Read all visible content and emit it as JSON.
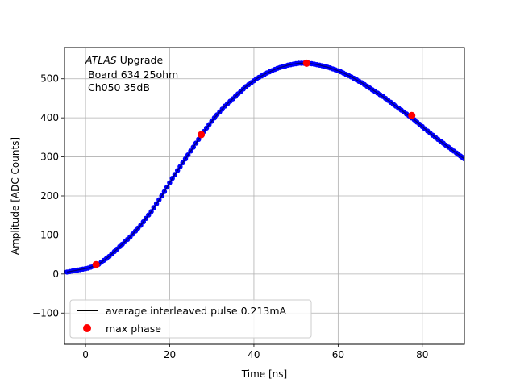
{
  "chart_data": {
    "type": "scatter",
    "xlabel": "Time [ns]",
    "ylabel": "Amplitude [ADC Counts]",
    "xlim": [
      -5,
      90
    ],
    "ylim": [
      -180,
      580
    ],
    "xticks": [
      0,
      20,
      40,
      60,
      80
    ],
    "yticks": [
      -100,
      0,
      100,
      200,
      300,
      400,
      500
    ],
    "grid": true,
    "legend_placement": "lower-left",
    "annotation": {
      "line1_italic": "ATLAS",
      "line1_rest": " Upgrade",
      "line2": "Board 634 25ohm",
      "line3": "Ch050 35dB"
    },
    "series": [
      {
        "name": "average interleaved pulse 0.213mA",
        "color": "#000000",
        "marker_color": "#0000ff",
        "points": [
          [
            -4.4,
            5
          ],
          [
            -1.9,
            10
          ],
          [
            0.6,
            15
          ],
          [
            3.1,
            25
          ],
          [
            5.6,
            45
          ],
          [
            8.1,
            70
          ],
          [
            10.6,
            95
          ],
          [
            13.1,
            125
          ],
          [
            15.6,
            160
          ],
          [
            18.1,
            200
          ],
          [
            20.6,
            245
          ],
          [
            23.1,
            285
          ],
          [
            25.6,
            325
          ],
          [
            28.1,
            365
          ],
          [
            30.6,
            400
          ],
          [
            33.1,
            430
          ],
          [
            35.6,
            455
          ],
          [
            38.1,
            480
          ],
          [
            40.6,
            500
          ],
          [
            43.1,
            515
          ],
          [
            45.6,
            527
          ],
          [
            48.1,
            535
          ],
          [
            50.6,
            540
          ],
          [
            53.1,
            540
          ],
          [
            55.6,
            535
          ],
          [
            58.1,
            528
          ],
          [
            60.6,
            518
          ],
          [
            63.1,
            505
          ],
          [
            65.6,
            490
          ],
          [
            68.1,
            472
          ],
          [
            70.6,
            455
          ],
          [
            73.1,
            435
          ],
          [
            75.6,
            415
          ],
          [
            78.1,
            395
          ],
          [
            80.6,
            372
          ],
          [
            83.1,
            350
          ],
          [
            85.6,
            330
          ],
          [
            88.1,
            310
          ],
          [
            90,
            295
          ]
        ]
      },
      {
        "name": "max phase",
        "color": "#ff0000",
        "points": [
          [
            2.5,
            24
          ],
          [
            27.5,
            357
          ],
          [
            52.5,
            540
          ],
          [
            77.5,
            406
          ]
        ]
      }
    ]
  }
}
